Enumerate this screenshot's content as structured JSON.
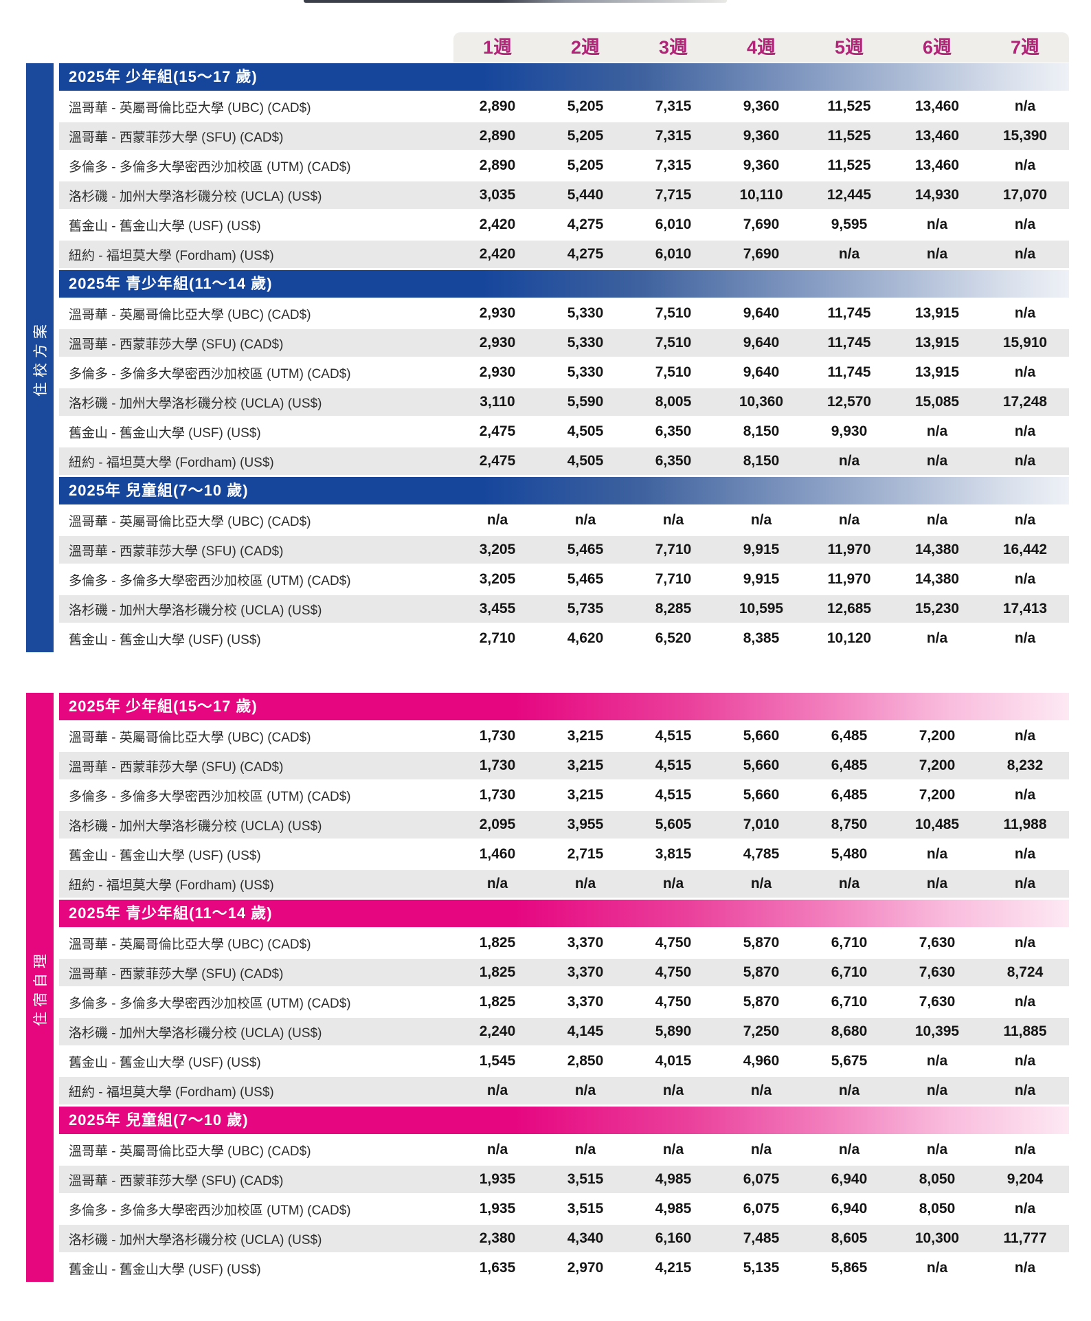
{
  "week_columns": [
    "1週",
    "2週",
    "3週",
    "4週",
    "5週",
    "6週",
    "7週"
  ],
  "accent_colors": {
    "blue_section": "#1b4a9c",
    "pink_section": "#e6067e",
    "week_label": "#b12478",
    "row_stripe": "#e9e8e8",
    "header_band_bg": "#f0eeeb"
  },
  "na_text": "n/a",
  "blocks": [
    {
      "sidebar_label": "住校方案",
      "accent": "blue",
      "groups": [
        {
          "title": "2025年 少年組(15～17 歲)",
          "rows": [
            {
              "label": "溫哥華 - 英屬哥倫比亞大學 (UBC) (CAD$)",
              "values": [
                "2,890",
                "5,205",
                "7,315",
                "9,360",
                "11,525",
                "13,460",
                "n/a"
              ]
            },
            {
              "label": "溫哥華 - 西蒙菲莎大學 (SFU) (CAD$)",
              "values": [
                "2,890",
                "5,205",
                "7,315",
                "9,360",
                "11,525",
                "13,460",
                "15,390"
              ]
            },
            {
              "label": "多倫多 - 多倫多大學密西沙加校區 (UTM) (CAD$)",
              "values": [
                "2,890",
                "5,205",
                "7,315",
                "9,360",
                "11,525",
                "13,460",
                "n/a"
              ]
            },
            {
              "label": "洛杉磯 - 加州大學洛杉磯分校 (UCLA) (US$)",
              "values": [
                "3,035",
                "5,440",
                "7,715",
                "10,110",
                "12,445",
                "14,930",
                "17,070"
              ]
            },
            {
              "label": "舊金山 - 舊金山大學 (USF) (US$)",
              "values": [
                "2,420",
                "4,275",
                "6,010",
                "7,690",
                "9,595",
                "n/a",
                "n/a"
              ]
            },
            {
              "label": "紐約 - 福坦莫大學 (Fordham) (US$)",
              "values": [
                "2,420",
                "4,275",
                "6,010",
                "7,690",
                "n/a",
                "n/a",
                "n/a"
              ]
            }
          ]
        },
        {
          "title": "2025年 青少年組(11～14 歲)",
          "rows": [
            {
              "label": "溫哥華 - 英屬哥倫比亞大學 (UBC) (CAD$)",
              "values": [
                "2,930",
                "5,330",
                "7,510",
                "9,640",
                "11,745",
                "13,915",
                "n/a"
              ]
            },
            {
              "label": "溫哥華 - 西蒙菲莎大學 (SFU) (CAD$)",
              "values": [
                "2,930",
                "5,330",
                "7,510",
                "9,640",
                "11,745",
                "13,915",
                "15,910"
              ]
            },
            {
              "label": "多倫多 - 多倫多大學密西沙加校區 (UTM) (CAD$)",
              "values": [
                "2,930",
                "5,330",
                "7,510",
                "9,640",
                "11,745",
                "13,915",
                "n/a"
              ]
            },
            {
              "label": "洛杉磯 - 加州大學洛杉磯分校 (UCLA) (US$)",
              "values": [
                "3,110",
                "5,590",
                "8,005",
                "10,360",
                "12,570",
                "15,085",
                "17,248"
              ]
            },
            {
              "label": "舊金山 - 舊金山大學 (USF) (US$)",
              "values": [
                "2,475",
                "4,505",
                "6,350",
                "8,150",
                "9,930",
                "n/a",
                "n/a"
              ]
            },
            {
              "label": "紐約 - 福坦莫大學 (Fordham) (US$)",
              "values": [
                "2,475",
                "4,505",
                "6,350",
                "8,150",
                "n/a",
                "n/a",
                "n/a"
              ]
            }
          ]
        },
        {
          "title": "2025年 兒童組(7～10 歲)",
          "rows": [
            {
              "label": "溫哥華 - 英屬哥倫比亞大學 (UBC) (CAD$)",
              "values": [
                "n/a",
                "n/a",
                "n/a",
                "n/a",
                "n/a",
                "n/a",
                "n/a"
              ]
            },
            {
              "label": "溫哥華 - 西蒙菲莎大學 (SFU) (CAD$)",
              "values": [
                "3,205",
                "5,465",
                "7,710",
                "9,915",
                "11,970",
                "14,380",
                "16,442"
              ]
            },
            {
              "label": "多倫多 - 多倫多大學密西沙加校區 (UTM) (CAD$)",
              "values": [
                "3,205",
                "5,465",
                "7,710",
                "9,915",
                "11,970",
                "14,380",
                "n/a"
              ]
            },
            {
              "label": "洛杉磯 - 加州大學洛杉磯分校 (UCLA) (US$)",
              "values": [
                "3,455",
                "5,735",
                "8,285",
                "10,595",
                "12,685",
                "15,230",
                "17,413"
              ]
            },
            {
              "label": "舊金山 - 舊金山大學 (USF) (US$)",
              "values": [
                "2,710",
                "4,620",
                "6,520",
                "8,385",
                "10,120",
                "n/a",
                "n/a"
              ]
            }
          ]
        }
      ]
    },
    {
      "sidebar_label": "住宿自理",
      "accent": "pink",
      "groups": [
        {
          "title": "2025年 少年組(15～17 歲)",
          "rows": [
            {
              "label": "溫哥華 - 英屬哥倫比亞大學 (UBC) (CAD$)",
              "values": [
                "1,730",
                "3,215",
                "4,515",
                "5,660",
                "6,485",
                "7,200",
                "n/a"
              ]
            },
            {
              "label": "溫哥華 - 西蒙菲莎大學 (SFU) (CAD$)",
              "values": [
                "1,730",
                "3,215",
                "4,515",
                "5,660",
                "6,485",
                "7,200",
                "8,232"
              ]
            },
            {
              "label": "多倫多 - 多倫多大學密西沙加校區 (UTM) (CAD$)",
              "values": [
                "1,730",
                "3,215",
                "4,515",
                "5,660",
                "6,485",
                "7,200",
                "n/a"
              ]
            },
            {
              "label": "洛杉磯 - 加州大學洛杉磯分校 (UCLA) (US$)",
              "values": [
                "2,095",
                "3,955",
                "5,605",
                "7,010",
                "8,750",
                "10,485",
                "11,988"
              ]
            },
            {
              "label": "舊金山 - 舊金山大學 (USF) (US$)",
              "values": [
                "1,460",
                "2,715",
                "3,815",
                "4,785",
                "5,480",
                "n/a",
                "n/a"
              ]
            },
            {
              "label": "紐約 - 福坦莫大學 (Fordham) (US$)",
              "values": [
                "n/a",
                "n/a",
                "n/a",
                "n/a",
                "n/a",
                "n/a",
                "n/a"
              ]
            }
          ]
        },
        {
          "title": "2025年 青少年組(11～14 歲)",
          "rows": [
            {
              "label": "溫哥華 - 英屬哥倫比亞大學 (UBC) (CAD$)",
              "values": [
                "1,825",
                "3,370",
                "4,750",
                "5,870",
                "6,710",
                "7,630",
                "n/a"
              ]
            },
            {
              "label": "溫哥華 - 西蒙菲莎大學 (SFU) (CAD$)",
              "values": [
                "1,825",
                "3,370",
                "4,750",
                "5,870",
                "6,710",
                "7,630",
                "8,724"
              ]
            },
            {
              "label": "多倫多 - 多倫多大學密西沙加校區 (UTM) (CAD$)",
              "values": [
                "1,825",
                "3,370",
                "4,750",
                "5,870",
                "6,710",
                "7,630",
                "n/a"
              ]
            },
            {
              "label": "洛杉磯 - 加州大學洛杉磯分校 (UCLA) (US$)",
              "values": [
                "2,240",
                "4,145",
                "5,890",
                "7,250",
                "8,680",
                "10,395",
                "11,885"
              ]
            },
            {
              "label": "舊金山 - 舊金山大學 (USF) (US$)",
              "values": [
                "1,545",
                "2,850",
                "4,015",
                "4,960",
                "5,675",
                "n/a",
                "n/a"
              ]
            },
            {
              "label": "紐約 - 福坦莫大學 (Fordham) (US$)",
              "values": [
                "n/a",
                "n/a",
                "n/a",
                "n/a",
                "n/a",
                "n/a",
                "n/a"
              ]
            }
          ]
        },
        {
          "title": "2025年 兒童組(7～10 歲)",
          "rows": [
            {
              "label": "溫哥華 - 英屬哥倫比亞大學 (UBC) (CAD$)",
              "values": [
                "n/a",
                "n/a",
                "n/a",
                "n/a",
                "n/a",
                "n/a",
                "n/a"
              ]
            },
            {
              "label": "溫哥華 - 西蒙菲莎大學 (SFU) (CAD$)",
              "values": [
                "1,935",
                "3,515",
                "4,985",
                "6,075",
                "6,940",
                "8,050",
                "9,204"
              ]
            },
            {
              "label": "多倫多 - 多倫多大學密西沙加校區 (UTM) (CAD$)",
              "values": [
                "1,935",
                "3,515",
                "4,985",
                "6,075",
                "6,940",
                "8,050",
                "n/a"
              ]
            },
            {
              "label": "洛杉磯 - 加州大學洛杉磯分校 (UCLA) (US$)",
              "values": [
                "2,380",
                "4,340",
                "6,160",
                "7,485",
                "8,605",
                "10,300",
                "11,777"
              ]
            },
            {
              "label": "舊金山 - 舊金山大學 (USF) (US$)",
              "values": [
                "1,635",
                "2,970",
                "4,215",
                "5,135",
                "5,865",
                "n/a",
                "n/a"
              ]
            }
          ]
        }
      ]
    }
  ]
}
